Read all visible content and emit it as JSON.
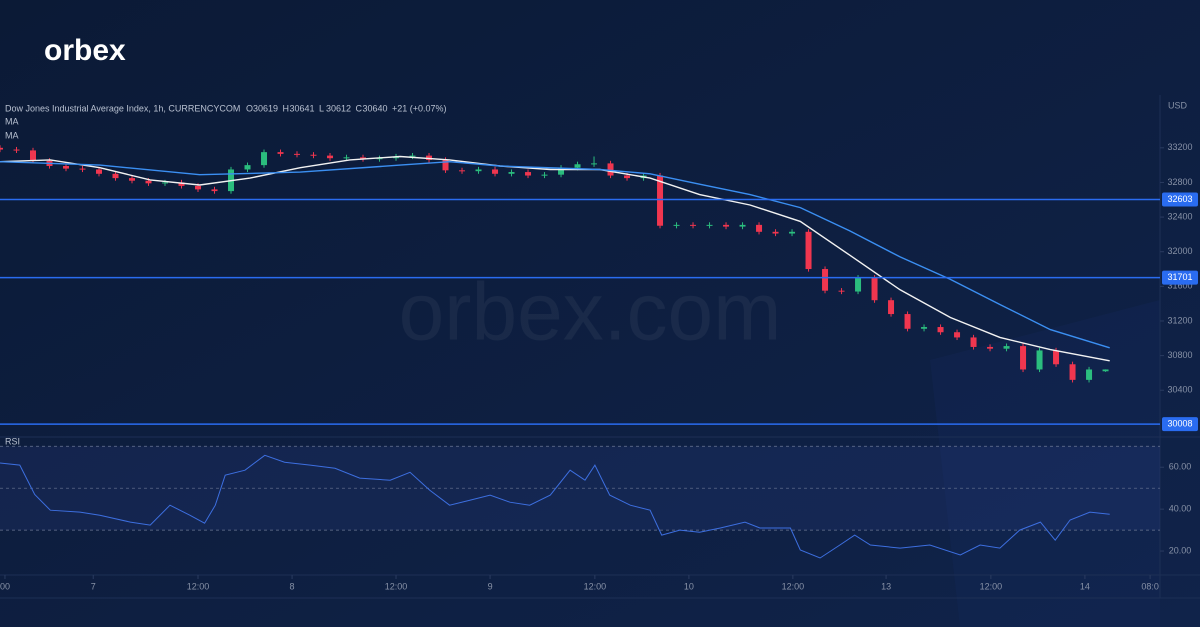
{
  "brand": "orbex",
  "watermark": "orbex.com",
  "chart_data": {
    "type": "candlestick",
    "title": "Dow Jones Industrial Average Index, 1h, CURRENCYCOM",
    "ohlc_legend": [
      {
        "label": "O",
        "value": 30619
      },
      {
        "label": "H",
        "value": 30641
      },
      {
        "label": "L",
        "value": 30612
      },
      {
        "label": "C",
        "value": 30640
      }
    ],
    "change": "+21 (+0.07%)",
    "currency": "USD",
    "up_color": "#2bbd7e",
    "down_color": "#f0364f",
    "x": [
      0,
      2,
      4,
      6,
      8,
      10,
      12,
      14,
      16,
      18,
      20,
      22,
      24,
      26,
      28,
      30,
      32,
      34,
      36,
      38,
      40,
      42,
      44,
      46,
      48,
      50,
      52,
      54,
      56,
      58,
      60,
      62,
      64,
      66,
      68,
      70,
      72,
      74,
      76,
      78,
      80,
      82,
      84,
      86,
      88,
      90,
      92,
      94,
      96,
      98,
      100,
      102,
      104,
      106,
      108,
      110,
      112,
      114,
      116,
      118,
      120,
      122,
      124,
      126,
      128,
      130,
      132,
      134
    ],
    "open": [
      33200,
      33180,
      33170,
      33050,
      32990,
      32960,
      32950,
      32900,
      32850,
      32820,
      32790,
      32800,
      32760,
      32720,
      32700,
      32950,
      33000,
      33150,
      33130,
      33120,
      33110,
      33080,
      33090,
      33070,
      33080,
      33100,
      33110,
      33060,
      32940,
      32930,
      32950,
      32900,
      32920,
      32880,
      32890,
      32970,
      33010,
      33020,
      32880,
      32850,
      32880,
      32300,
      32310,
      32300,
      32310,
      32290,
      32310,
      32230,
      32210,
      32230,
      31800,
      31550,
      31540,
      31700,
      31440,
      31280,
      31110,
      31130,
      31070,
      31010,
      30900,
      30880,
      30910,
      30640,
      30860,
      30700,
      30520,
      30619
    ],
    "high": [
      33230,
      33210,
      33200,
      33080,
      33020,
      32990,
      32980,
      32930,
      32880,
      32850,
      32830,
      32830,
      32790,
      32750,
      32980,
      33030,
      33180,
      33180,
      33160,
      33150,
      33140,
      33120,
      33120,
      33110,
      33130,
      33140,
      33140,
      33090,
      32970,
      32980,
      32980,
      32950,
      32950,
      32920,
      33000,
      33040,
      33100,
      33050,
      32910,
      32910,
      32910,
      32340,
      32340,
      32340,
      32340,
      32340,
      32340,
      32260,
      32260,
      32260,
      31830,
      31580,
      31730,
      31730,
      31470,
      31310,
      31160,
      31160,
      31100,
      31040,
      30930,
      30940,
      30940,
      30890,
      30890,
      30730,
      30670,
      30641
    ],
    "low": [
      33150,
      33140,
      33020,
      32960,
      32930,
      32920,
      32870,
      32820,
      32790,
      32760,
      32760,
      32730,
      32690,
      32670,
      32670,
      32920,
      32970,
      33100,
      33090,
      33080,
      33050,
      33050,
      33040,
      33040,
      33050,
      33070,
      33030,
      32910,
      32900,
      32900,
      32870,
      32870,
      32850,
      32850,
      32860,
      32940,
      32980,
      32850,
      32820,
      32820,
      32270,
      32270,
      32270,
      32270,
      32260,
      32260,
      32200,
      32180,
      32180,
      31770,
      31520,
      31510,
      31510,
      31410,
      31250,
      31080,
      31080,
      31040,
      30980,
      30870,
      30850,
      30850,
      30610,
      30610,
      30670,
      30490,
      30490,
      30612
    ],
    "close": [
      33180,
      33170,
      33050,
      32990,
      32960,
      32950,
      32900,
      32850,
      32820,
      32790,
      32800,
      32760,
      32720,
      32700,
      32950,
      33000,
      33150,
      33130,
      33120,
      33110,
      33080,
      33090,
      33070,
      33080,
      33100,
      33110,
      33060,
      32940,
      32930,
      32950,
      32900,
      32920,
      32880,
      32890,
      32970,
      33010,
      33020,
      32880,
      32850,
      32880,
      32300,
      32310,
      32300,
      32310,
      32290,
      32310,
      32230,
      32210,
      32230,
      31800,
      31550,
      31540,
      31700,
      31440,
      31280,
      31110,
      31130,
      31070,
      31010,
      30900,
      30880,
      30910,
      30640,
      30860,
      30700,
      30520,
      30640,
      30640
    ],
    "xlim": [
      0,
      140.6
    ],
    "xticks": [
      {
        "value": 0.6,
        "label": "00"
      },
      {
        "value": 11.3,
        "label": "7"
      },
      {
        "value": 24,
        "label": "12:00"
      },
      {
        "value": 35.4,
        "label": "8"
      },
      {
        "value": 48,
        "label": "12:00"
      },
      {
        "value": 59.4,
        "label": "9"
      },
      {
        "value": 72.1,
        "label": "12:00"
      },
      {
        "value": 83.5,
        "label": "10"
      },
      {
        "value": 96.1,
        "label": "12:00"
      },
      {
        "value": 107.4,
        "label": "13"
      },
      {
        "value": 120.1,
        "label": "12:00"
      },
      {
        "value": 131.5,
        "label": "14"
      },
      {
        "value": 139.4,
        "label": "08:0"
      }
    ],
    "ylim": [
      29860,
      33810
    ],
    "yticks": [
      30400,
      30800,
      31200,
      31600,
      32000,
      32400,
      32800,
      33200
    ],
    "levels": [
      32603,
      31701,
      30008
    ],
    "level_color": "#2a6cf0",
    "ma": [
      {
        "name": "MA",
        "color": "#f2f2f2",
        "x": [
          0,
          6.1,
          12.1,
          18.2,
          24.2,
          30.3,
          36.4,
          42.4,
          48.5,
          54.5,
          60.6,
          66.7,
          72.7,
          78.8,
          84.8,
          90.9,
          97,
          103,
          109.1,
          115.2,
          121.2,
          127.3,
          134.5
        ],
        "values": [
          33040,
          33060,
          32970,
          32830,
          32770,
          32850,
          32970,
          33060,
          33100,
          33060,
          32990,
          32950,
          32950,
          32850,
          32660,
          32540,
          32350,
          31960,
          31560,
          31240,
          31010,
          30870,
          30740
        ]
      },
      {
        "name": "MA",
        "color": "#3b8ff2",
        "x": [
          0,
          12.1,
          24.2,
          36.4,
          48.5,
          54.5,
          60.6,
          72.7,
          78.8,
          84.8,
          90.9,
          97,
          103,
          109.1,
          115.2,
          121.2,
          127.3,
          134.5
        ],
        "values": [
          33040,
          33000,
          32890,
          32920,
          33000,
          33040,
          32990,
          32950,
          32900,
          32780,
          32660,
          32510,
          32240,
          31940,
          31680,
          31390,
          31100,
          30890
        ]
      }
    ],
    "rsi": {
      "name": "RSI",
      "color": "#3d6fe0",
      "x": [
        0,
        2.4,
        4.2,
        6.1,
        9.7,
        12.1,
        15.8,
        18.2,
        20.6,
        23,
        24.8,
        26.1,
        27.3,
        29.7,
        32.1,
        34.5,
        37.6,
        40.6,
        43.6,
        47.3,
        49.7,
        52.1,
        54.5,
        57,
        59.4,
        61.8,
        64.2,
        66.7,
        69.1,
        70.9,
        72.1,
        73.9,
        76.4,
        78.8,
        80.2,
        82.4,
        84.8,
        87.3,
        90.3,
        92.1,
        95.8,
        97,
        99.4,
        101.8,
        103.6,
        105.5,
        109.1,
        112.7,
        116.4,
        118.8,
        121.2,
        123.6,
        126.1,
        127.9,
        129.7,
        132.1,
        134.5
      ],
      "values": [
        62,
        61,
        47,
        39.5,
        38.6,
        37.1,
        33.8,
        32.4,
        41.9,
        37.1,
        33.3,
        41.9,
        56.2,
        58.6,
        65.7,
        62.4,
        61,
        59.5,
        54.8,
        53.8,
        57.6,
        49,
        41.9,
        44.3,
        46.7,
        43.3,
        41.9,
        46.7,
        58.6,
        53.8,
        61,
        46.7,
        41.9,
        39.5,
        27.6,
        30,
        29,
        31,
        33.8,
        31,
        31,
        20.5,
        16.7,
        22.9,
        27.6,
        22.9,
        21.4,
        22.9,
        18.1,
        22.9,
        21.4,
        30,
        33.8,
        25.2,
        34.8,
        38.6,
        37.6
      ],
      "ylim": [
        10,
        73
      ],
      "yticks": [
        {
          "value": 20,
          "label": "20.00"
        },
        {
          "value": 40,
          "label": "40.00"
        },
        {
          "value": 60,
          "label": "60.00"
        }
      ],
      "levels": [
        30,
        50,
        70
      ]
    }
  }
}
